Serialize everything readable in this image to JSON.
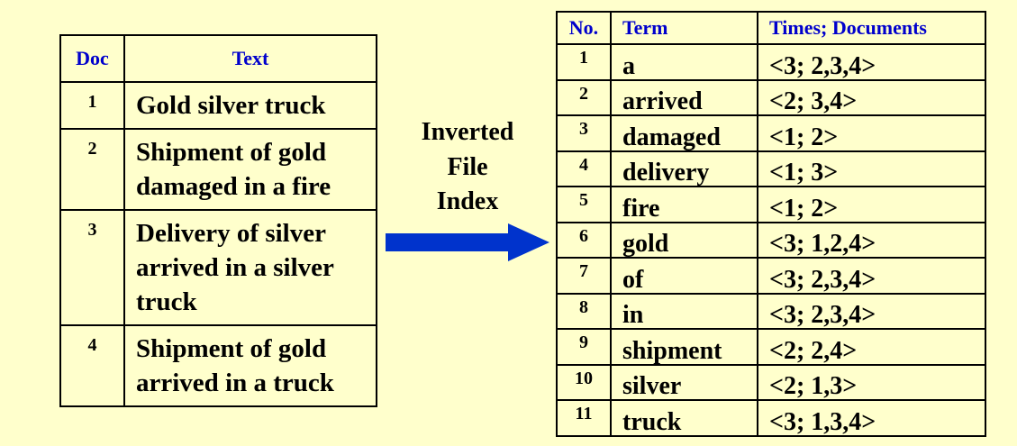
{
  "documents": {
    "headers": {
      "doc": "Doc",
      "text": "Text"
    },
    "rows": [
      {
        "num": "1",
        "lines": [
          "Gold silver truck"
        ]
      },
      {
        "num": "2",
        "lines": [
          "Shipment of gold",
          "damaged in a fire"
        ]
      },
      {
        "num": "3",
        "lines": [
          "Delivery of silver",
          "arrived in a silver",
          "truck"
        ]
      },
      {
        "num": "4",
        "lines": [
          "Shipment of gold",
          "arrived in a truck"
        ]
      }
    ]
  },
  "label": {
    "lines": [
      "Inverted",
      "File",
      "Index"
    ]
  },
  "index": {
    "headers": {
      "no": "No.",
      "term": "Term",
      "times": "Times; Documents"
    },
    "rows": [
      {
        "no": "1",
        "term": "a",
        "times": "<3; 2,3,4>"
      },
      {
        "no": "2",
        "term": "arrived",
        "times": "<2; 3,4>"
      },
      {
        "no": "3",
        "term": "damaged",
        "times": "<1; 2>"
      },
      {
        "no": "4",
        "term": "delivery",
        "times": "<1; 3>"
      },
      {
        "no": "5",
        "term": "fire",
        "times": "<1; 2>"
      },
      {
        "no": "6",
        "term": "gold",
        "times": "<3; 1,2,4>"
      },
      {
        "no": "7",
        "term": "of",
        "times": "<3; 2,3,4>"
      },
      {
        "no": "8",
        "term": "in",
        "times": "<3; 2,3,4>"
      },
      {
        "no": "9",
        "term": "shipment",
        "times": "<2; 2,4>"
      },
      {
        "no": "10",
        "term": "silver",
        "times": "<2; 1,3>"
      },
      {
        "no": "11",
        "term": "truck",
        "times": "<3; 1,3,4>"
      }
    ]
  },
  "colors": {
    "background": "#ffffcc",
    "header_text": "#0000cc",
    "arrow": "#0033cc"
  }
}
